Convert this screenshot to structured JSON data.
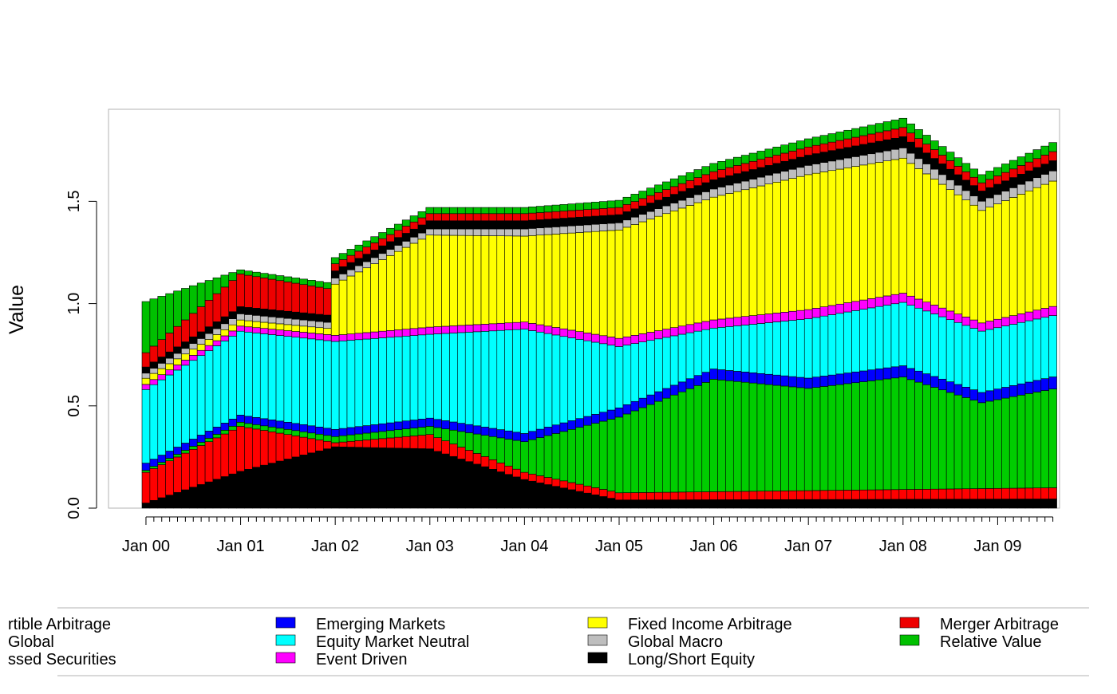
{
  "chart_data": {
    "type": "bar",
    "stacked": true,
    "title": "",
    "xlabel": "",
    "ylabel": "Value",
    "ylim": [
      0,
      1.95
    ],
    "y_ticks": [
      "0.0",
      "0.5",
      "1.0",
      "1.5"
    ],
    "y_tick_values": [
      0,
      0.5,
      1.0,
      1.5
    ],
    "x_tick_labels": [
      "Jan 00",
      "Jan 01",
      "Jan 02",
      "Jan 03",
      "Jan 04",
      "Jan 05",
      "Jan 06",
      "Jan 07",
      "Jan 08",
      "Jan 09"
    ],
    "x_start": "Jan 2000",
    "x_end": "Aug 2009",
    "frequency": "monthly",
    "grid": false,
    "legend_position": "bottom",
    "series": [
      {
        "name": "Convertible Arbitrage",
        "legend_text": "rtible Arbitrage",
        "color": "#000000",
        "anchors": [
          [
            0,
            0.025
          ],
          [
            12,
            0.18
          ],
          [
            24,
            0.3
          ],
          [
            36,
            0.29
          ],
          [
            48,
            0.14
          ],
          [
            60,
            0.04
          ],
          [
            116,
            0.045
          ]
        ]
      },
      {
        "name": "CTA Global",
        "legend_text": "Global",
        "color": "#ff0000",
        "anchors": [
          [
            0,
            0.15
          ],
          [
            12,
            0.22
          ],
          [
            24,
            0.02
          ],
          [
            36,
            0.07
          ],
          [
            48,
            0.035
          ],
          [
            60,
            0.035
          ],
          [
            116,
            0.055
          ]
        ]
      },
      {
        "name": "Distressed Securities",
        "legend_text": "ssed Securities",
        "color": "#00cd00",
        "anchors": [
          [
            0,
            0.01
          ],
          [
            12,
            0.02
          ],
          [
            24,
            0.03
          ],
          [
            36,
            0.04
          ],
          [
            48,
            0.15
          ],
          [
            60,
            0.37
          ],
          [
            72,
            0.55
          ],
          [
            84,
            0.5
          ],
          [
            96,
            0.55
          ],
          [
            106,
            0.42
          ],
          [
            116,
            0.49
          ]
        ]
      },
      {
        "name": "Emerging Markets",
        "color": "#0000ff",
        "anchors": [
          [
            0,
            0.035
          ],
          [
            12,
            0.035
          ],
          [
            24,
            0.035
          ],
          [
            36,
            0.04
          ],
          [
            48,
            0.04
          ],
          [
            60,
            0.045
          ],
          [
            72,
            0.05
          ],
          [
            84,
            0.05
          ],
          [
            96,
            0.055
          ],
          [
            106,
            0.05
          ],
          [
            116,
            0.06
          ]
        ]
      },
      {
        "name": "Equity Market Neutral",
        "color": "#00ffff",
        "anchors": [
          [
            0,
            0.36
          ],
          [
            12,
            0.41
          ],
          [
            24,
            0.43
          ],
          [
            36,
            0.41
          ],
          [
            48,
            0.51
          ],
          [
            60,
            0.3
          ],
          [
            72,
            0.2
          ],
          [
            84,
            0.29
          ],
          [
            96,
            0.31
          ],
          [
            106,
            0.3
          ],
          [
            116,
            0.3
          ]
        ]
      },
      {
        "name": "Event Driven",
        "color": "#ff00ff",
        "anchors": [
          [
            0,
            0.025
          ],
          [
            12,
            0.025
          ],
          [
            24,
            0.03
          ],
          [
            36,
            0.035
          ],
          [
            48,
            0.035
          ],
          [
            60,
            0.04
          ],
          [
            72,
            0.04
          ],
          [
            84,
            0.045
          ],
          [
            96,
            0.045
          ],
          [
            106,
            0.04
          ],
          [
            116,
            0.045
          ]
        ]
      },
      {
        "name": "Fixed Income Arbitrage",
        "color": "#ffff00",
        "anchors": [
          [
            0,
            0.03
          ],
          [
            12,
            0.03
          ],
          [
            23,
            0.03
          ],
          [
            24,
            0.25
          ],
          [
            36,
            0.45
          ],
          [
            48,
            0.42
          ],
          [
            60,
            0.53
          ],
          [
            72,
            0.6
          ],
          [
            84,
            0.66
          ],
          [
            96,
            0.66
          ],
          [
            106,
            0.55
          ],
          [
            116,
            0.62
          ]
        ]
      },
      {
        "name": "Global Macro",
        "color": "#bebebe",
        "anchors": [
          [
            0,
            0.025
          ],
          [
            12,
            0.03
          ],
          [
            24,
            0.03
          ],
          [
            36,
            0.03
          ],
          [
            48,
            0.035
          ],
          [
            60,
            0.035
          ],
          [
            72,
            0.04
          ],
          [
            84,
            0.045
          ],
          [
            96,
            0.05
          ],
          [
            106,
            0.045
          ],
          [
            116,
            0.05
          ]
        ]
      },
      {
        "name": "Long/Short Equity",
        "color": "#000000",
        "anchors": [
          [
            0,
            0.03
          ],
          [
            12,
            0.035
          ],
          [
            24,
            0.035
          ],
          [
            36,
            0.04
          ],
          [
            48,
            0.04
          ],
          [
            60,
            0.04
          ],
          [
            72,
            0.045
          ],
          [
            84,
            0.05
          ],
          [
            96,
            0.055
          ],
          [
            106,
            0.05
          ],
          [
            116,
            0.05
          ]
        ]
      },
      {
        "name": "Merger Arbitrage",
        "color": "#ee0000",
        "anchors": [
          [
            0,
            0.07
          ],
          [
            12,
            0.16
          ],
          [
            23,
            0.13
          ],
          [
            24,
            0.035
          ],
          [
            36,
            0.035
          ],
          [
            48,
            0.035
          ],
          [
            60,
            0.035
          ],
          [
            72,
            0.04
          ],
          [
            84,
            0.04
          ],
          [
            96,
            0.045
          ],
          [
            106,
            0.04
          ],
          [
            116,
            0.045
          ]
        ]
      },
      {
        "name": "Relative Value",
        "color": "#00c000",
        "anchors": [
          [
            0,
            0.25
          ],
          [
            12,
            0.02
          ],
          [
            24,
            0.03
          ],
          [
            36,
            0.03
          ],
          [
            48,
            0.03
          ],
          [
            60,
            0.035
          ],
          [
            72,
            0.04
          ],
          [
            84,
            0.04
          ],
          [
            96,
            0.045
          ],
          [
            106,
            0.04
          ],
          [
            116,
            0.045
          ]
        ]
      }
    ]
  }
}
